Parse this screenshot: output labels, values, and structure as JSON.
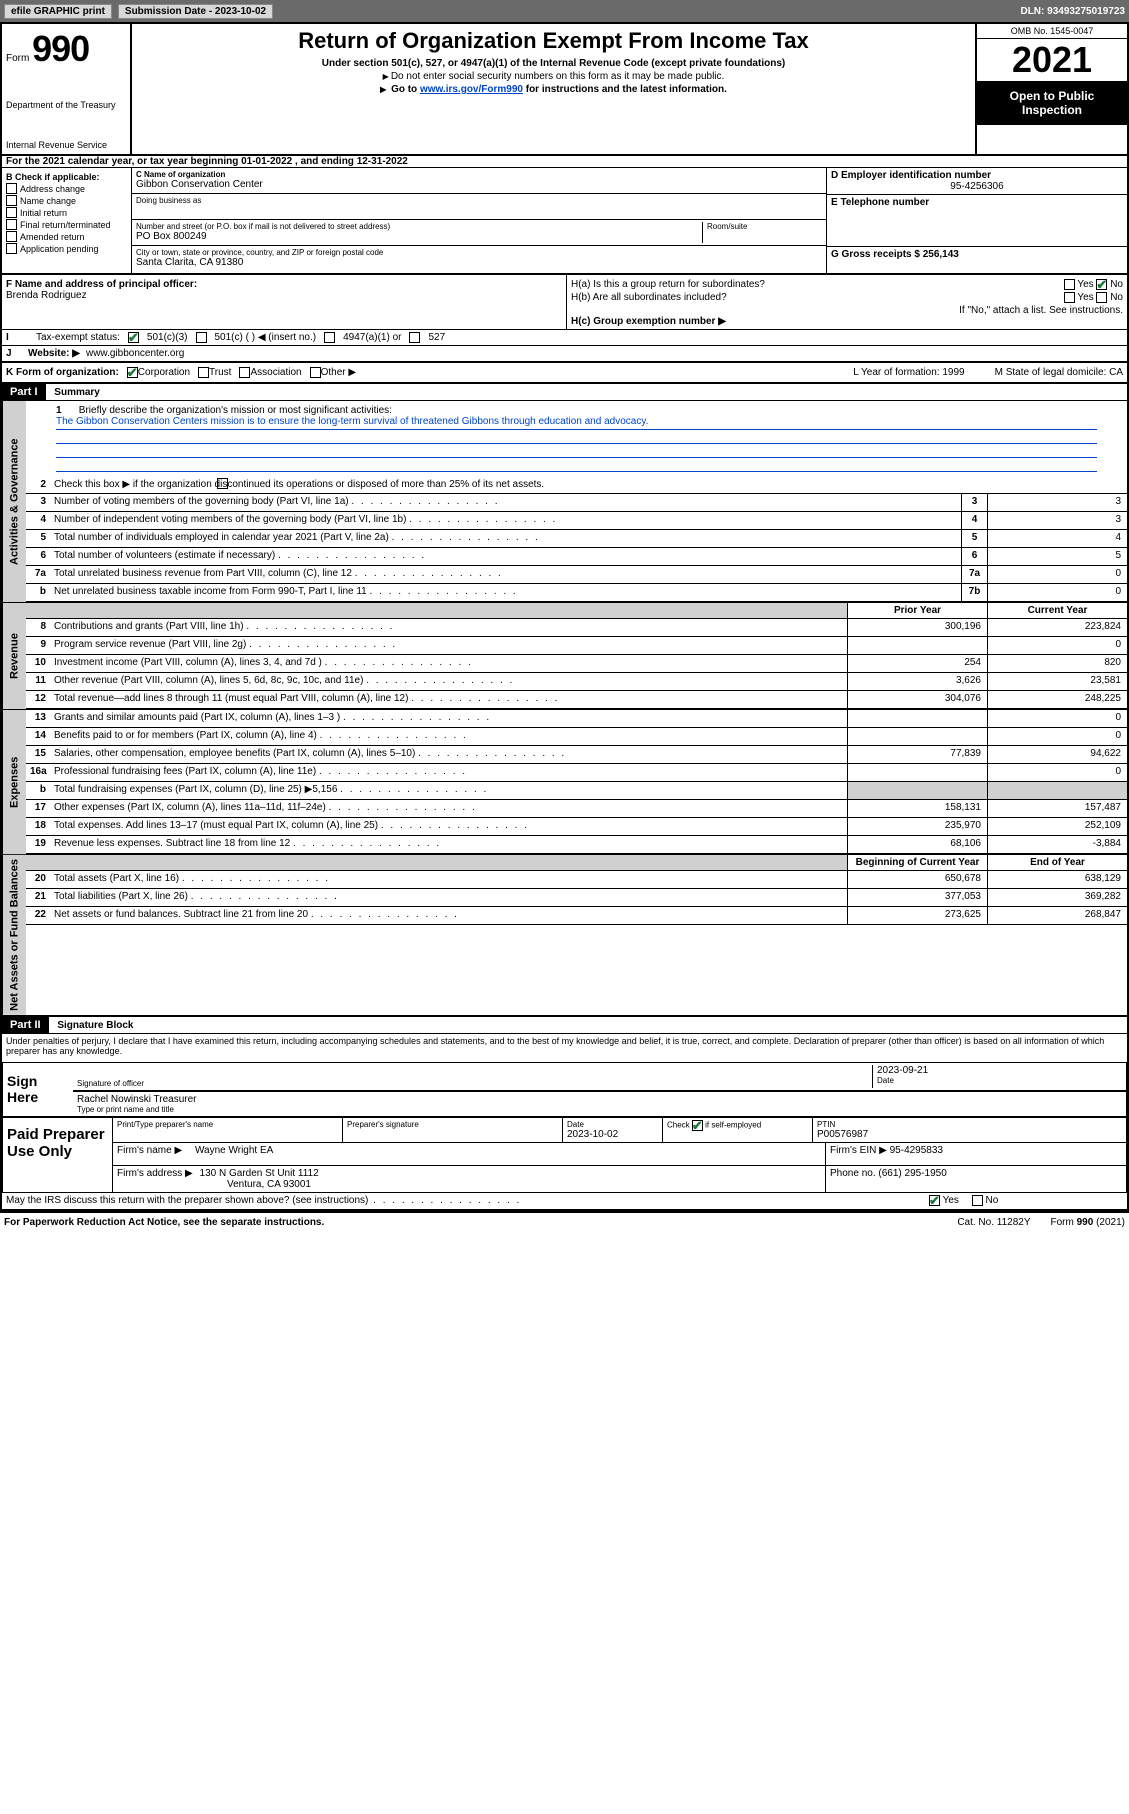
{
  "topbar": {
    "efile": "efile GRAPHIC print",
    "submission_label": "Submission Date - 2023-10-02",
    "dln_label": "DLN: 93493275019723"
  },
  "header": {
    "form_word": "Form",
    "form_number": "990",
    "dept": "Department of the Treasury",
    "irs": "Internal Revenue Service",
    "title": "Return of Organization Exempt From Income Tax",
    "subtitle": "Under section 501(c), 527, or 4947(a)(1) of the Internal Revenue Code (except private foundations)",
    "note1": "Do not enter social security numbers on this form as it may be made public.",
    "note2_pre": "Go to ",
    "note2_link": "www.irs.gov/Form990",
    "note2_post": " for instructions and the latest information.",
    "omb": "OMB No. 1545-0047",
    "year": "2021",
    "open": "Open to Public Inspection"
  },
  "section_a": "For the 2021 calendar year, or tax year beginning 01-01-2022    , and ending 12-31-2022",
  "col_b": {
    "header": "B Check if applicable:",
    "items": [
      "Address change",
      "Name change",
      "Initial return",
      "Final return/terminated",
      "Amended return",
      "Application pending"
    ]
  },
  "col_c": {
    "name_lbl": "C Name of organization",
    "name": "Gibbon Conservation Center",
    "dba_lbl": "Doing business as",
    "addr_lbl": "Number and street (or P.O. box if mail is not delivered to street address)",
    "room_lbl": "Room/suite",
    "addr": "PO Box 800249",
    "city_lbl": "City or town, state or province, country, and ZIP or foreign postal code",
    "city": "Santa Clarita, CA  91380"
  },
  "col_d": {
    "ein_lbl": "D Employer identification number",
    "ein": "95-4256306",
    "phone_lbl": "E Telephone number",
    "gross_lbl": "G Gross receipts $ 256,143"
  },
  "principal": {
    "lbl": "F  Name and address of principal officer:",
    "name": "Brenda Rodriguez"
  },
  "hq": {
    "ha": "H(a)  Is this a group return for subordinates?",
    "hb": "H(b)  Are all subordinates included?",
    "hb_note": "If \"No,\" attach a list. See instructions.",
    "hc": "H(c)  Group exemption number ▶",
    "yes": "Yes",
    "no": "No"
  },
  "status": {
    "lbl": "Tax-exempt status:",
    "opt1": "501(c)(3)",
    "opt2": "501(c) (   ) ◀ (insert no.)",
    "opt3": "4947(a)(1) or",
    "opt4": "527"
  },
  "website": {
    "lbl": "Website: ▶",
    "val": "www.gibboncenter.org",
    "j": "J"
  },
  "korg": {
    "lbl": "K Form of organization:",
    "opts": [
      "Corporation",
      "Trust",
      "Association",
      "Other ▶"
    ],
    "year_lbl": "L Year of formation: 1999",
    "state_lbl": "M State of legal domicile: CA"
  },
  "part1": {
    "hdr": "Part I",
    "title": "Summary",
    "q1_lbl": "Briefly describe the organization's mission or most significant activities:",
    "q1_num": "1",
    "mission": "The Gibbon Conservation Centers mission is to ensure the long-term survival of threatened Gibbons through education and advocacy.",
    "q2": "Check this box ▶       if the organization discontinued its operations or disposed of more than 25% of its net assets.",
    "q2_num": "2"
  },
  "vtabs": {
    "gov": "Activities & Governance",
    "rev": "Revenue",
    "exp": "Expenses",
    "net": "Net Assets or Fund Balances"
  },
  "lines_single": [
    {
      "n": "3",
      "d": "Number of voting members of the governing body (Part VI, line 1a)",
      "b": "3",
      "v": "3"
    },
    {
      "n": "4",
      "d": "Number of independent voting members of the governing body (Part VI, line 1b)",
      "b": "4",
      "v": "3"
    },
    {
      "n": "5",
      "d": "Total number of individuals employed in calendar year 2021 (Part V, line 2a)",
      "b": "5",
      "v": "4"
    },
    {
      "n": "6",
      "d": "Total number of volunteers (estimate if necessary)",
      "b": "6",
      "v": "5"
    },
    {
      "n": "7a",
      "d": "Total unrelated business revenue from Part VIII, column (C), line 12",
      "b": "7a",
      "v": "0"
    },
    {
      "n": "b",
      "d": "Net unrelated business taxable income from Form 990-T, Part I, line 11",
      "b": "7b",
      "v": "0"
    }
  ],
  "two_col_headers": {
    "prior": "Prior Year",
    "current": "Current Year"
  },
  "revenue_lines": [
    {
      "n": "8",
      "d": "Contributions and grants (Part VIII, line 1h)",
      "p": "300,196",
      "c": "223,824"
    },
    {
      "n": "9",
      "d": "Program service revenue (Part VIII, line 2g)",
      "p": "",
      "c": "0"
    },
    {
      "n": "10",
      "d": "Investment income (Part VIII, column (A), lines 3, 4, and 7d )",
      "p": "254",
      "c": "820"
    },
    {
      "n": "11",
      "d": "Other revenue (Part VIII, column (A), lines 5, 6d, 8c, 9c, 10c, and 11e)",
      "p": "3,626",
      "c": "23,581"
    },
    {
      "n": "12",
      "d": "Total revenue—add lines 8 through 11 (must equal Part VIII, column (A), line 12)",
      "p": "304,076",
      "c": "248,225"
    }
  ],
  "expense_lines": [
    {
      "n": "13",
      "d": "Grants and similar amounts paid (Part IX, column (A), lines 1–3 )",
      "p": "",
      "c": "0"
    },
    {
      "n": "14",
      "d": "Benefits paid to or for members (Part IX, column (A), line 4)",
      "p": "",
      "c": "0"
    },
    {
      "n": "15",
      "d": "Salaries, other compensation, employee benefits (Part IX, column (A), lines 5–10)",
      "p": "77,839",
      "c": "94,622"
    },
    {
      "n": "16a",
      "d": "Professional fundraising fees (Part IX, column (A), line 11e)",
      "p": "",
      "c": "0"
    },
    {
      "n": "b",
      "d": "Total fundraising expenses (Part IX, column (D), line 25) ▶5,156",
      "p": "GRAY",
      "c": "GRAY"
    },
    {
      "n": "17",
      "d": "Other expenses (Part IX, column (A), lines 11a–11d, 11f–24e)",
      "p": "158,131",
      "c": "157,487"
    },
    {
      "n": "18",
      "d": "Total expenses. Add lines 13–17 (must equal Part IX, column (A), line 25)",
      "p": "235,970",
      "c": "252,109"
    },
    {
      "n": "19",
      "d": "Revenue less expenses. Subtract line 18 from line 12",
      "p": "68,106",
      "c": "-3,884"
    }
  ],
  "net_headers": {
    "beg": "Beginning of Current Year",
    "end": "End of Year"
  },
  "net_lines": [
    {
      "n": "20",
      "d": "Total assets (Part X, line 16)",
      "p": "650,678",
      "c": "638,129"
    },
    {
      "n": "21",
      "d": "Total liabilities (Part X, line 26)",
      "p": "377,053",
      "c": "369,282"
    },
    {
      "n": "22",
      "d": "Net assets or fund balances. Subtract line 21 from line 20",
      "p": "273,625",
      "c": "268,847"
    }
  ],
  "part2": {
    "hdr": "Part II",
    "title": "Signature Block"
  },
  "sig": {
    "text": "Under penalties of perjury, I declare that I have examined this return, including accompanying schedules and statements, and to the best of my knowledge and belief, it is true, correct, and complete. Declaration of preparer (other than officer) is based on all information of which preparer has any knowledge.",
    "sign_here": "Sign Here",
    "sig_officer": "Signature of officer",
    "date": "Date",
    "sig_date": "2023-09-21",
    "officer_name": "Rachel Nowinski Treasurer",
    "type_name": "Type or print name and title"
  },
  "paid": {
    "title": "Paid Preparer Use Only",
    "h_name": "Print/Type preparer's name",
    "h_sig": "Preparer's signature",
    "h_date": "Date",
    "date_val": "2023-10-02",
    "h_check": "Check         if self-employed",
    "h_ptin": "PTIN",
    "ptin": "P00576987",
    "firm_lbl": "Firm's name      ▶",
    "firm": "Wayne Wright EA",
    "ein_lbl": "Firm's EIN ▶",
    "ein": "95-4295833",
    "addr_lbl": "Firm's address ▶",
    "addr1": "130 N Garden St Unit 1112",
    "addr2": "Ventura, CA  93001",
    "phone_lbl": "Phone no.",
    "phone": "(661) 295-1950"
  },
  "bottom": {
    "discuss": "May the IRS discuss this return with the preparer shown above? (see instructions)",
    "yes": "Yes",
    "no": "No",
    "paperwork": "For Paperwork Reduction Act Notice, see the separate instructions.",
    "cat": "Cat. No. 11282Y",
    "form": "Form 990 (2021)"
  },
  "i_label": "I",
  "colors": {
    "topbar_bg": "#6a6a6a",
    "link": "#0044cc",
    "check": "#1a7a3a",
    "vtab_bg": "#d0d0d0"
  }
}
